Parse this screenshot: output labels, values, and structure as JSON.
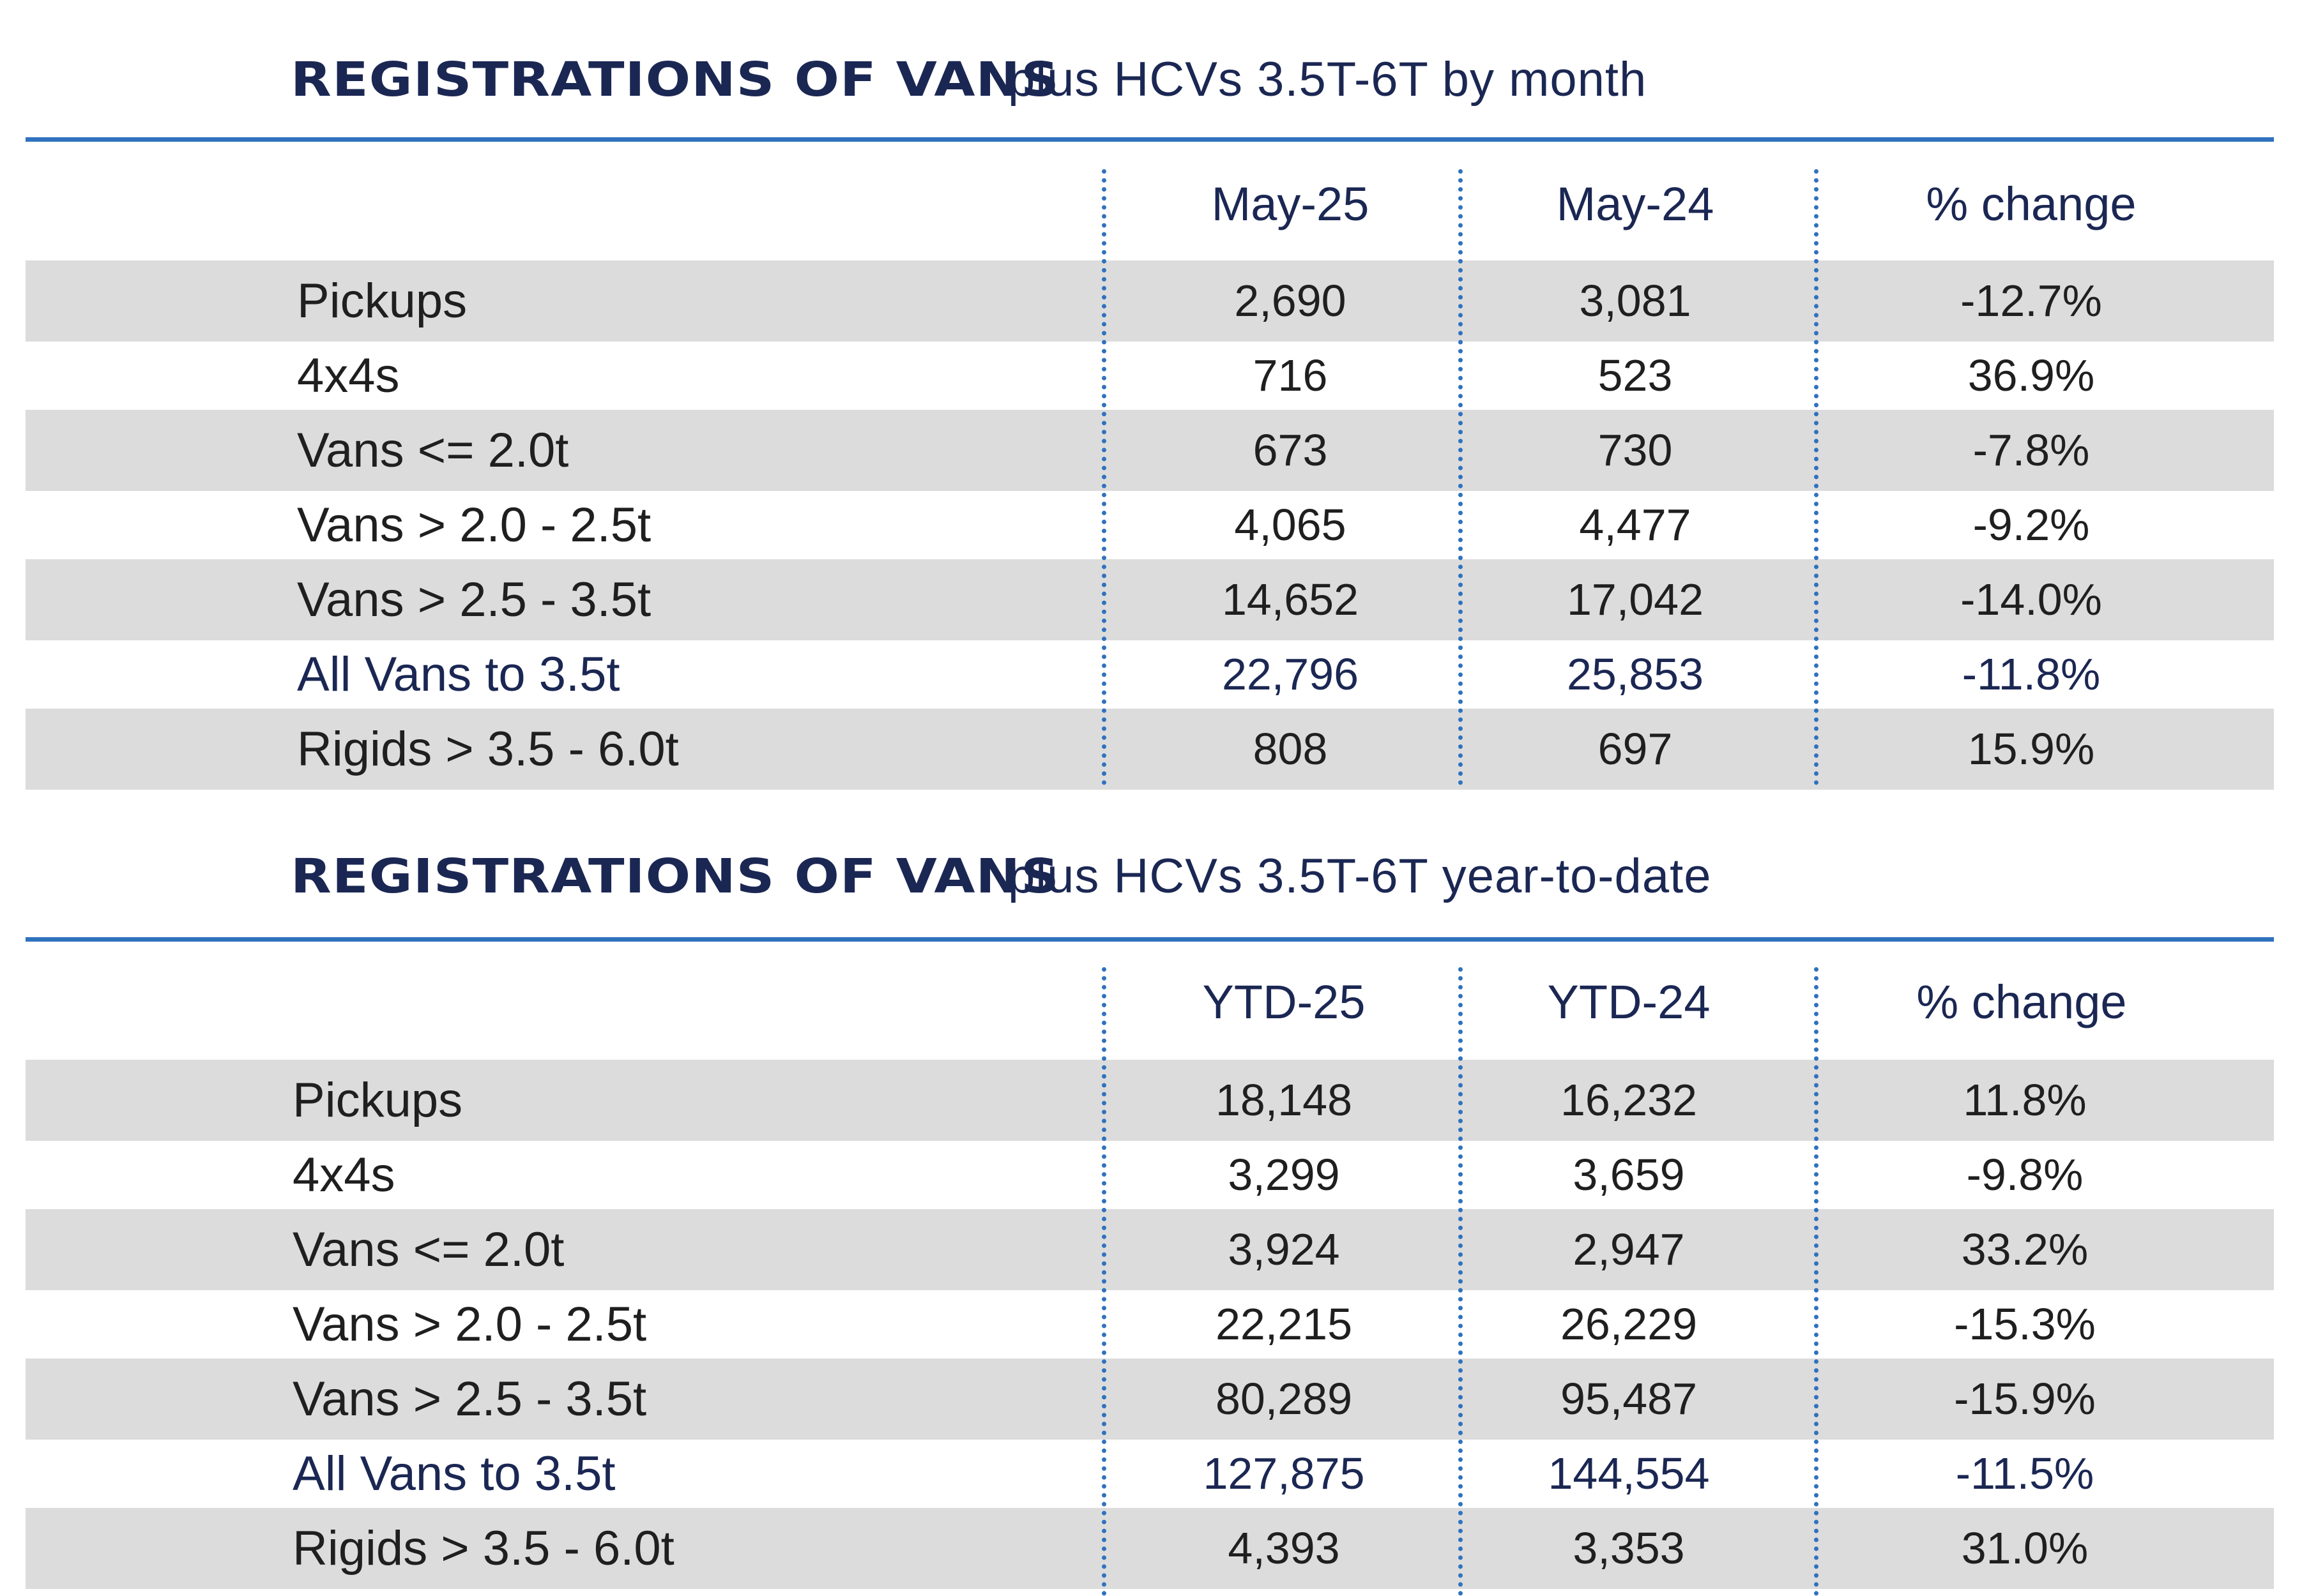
{
  "chart_data": [
    {
      "type": "table",
      "title_bold": "REGISTRATIONS OF VANS",
      "title_rest": "plus HCVs 3.5T-6T by month",
      "columns": [
        "May-25",
        "May-24",
        "% change"
      ],
      "rows": [
        {
          "label": "Pickups",
          "values": [
            "2,690",
            "3,081",
            "-12.7%"
          ]
        },
        {
          "label": "4x4s",
          "values": [
            "716",
            "523",
            "36.9%"
          ]
        },
        {
          "label": "Vans <= 2.0t",
          "values": [
            "673",
            "730",
            "-7.8%"
          ]
        },
        {
          "label": "Vans > 2.0 - 2.5t",
          "values": [
            "4,065",
            "4,477",
            "-9.2%"
          ]
        },
        {
          "label": "Vans > 2.5 - 3.5t",
          "values": [
            "14,652",
            "17,042",
            "-14.0%"
          ]
        },
        {
          "label": "All Vans to 3.5t",
          "values": [
            "22,796",
            "25,853",
            "-11.8%"
          ],
          "highlight": true
        },
        {
          "label": "Rigids > 3.5 - 6.0t",
          "values": [
            "808",
            "697",
            "15.9%"
          ]
        }
      ]
    },
    {
      "type": "table",
      "title_bold": "REGISTRATIONS OF VANS",
      "title_rest": "plus HCVs 3.5T-6T year-to-date",
      "columns": [
        "YTD-25",
        "YTD-24",
        "% change"
      ],
      "rows": [
        {
          "label": "Pickups",
          "values": [
            "18,148",
            "16,232",
            "11.8%"
          ]
        },
        {
          "label": "4x4s",
          "values": [
            "3,299",
            "3,659",
            "-9.8%"
          ]
        },
        {
          "label": "Vans <= 2.0t",
          "values": [
            "3,924",
            "2,947",
            "33.2%"
          ]
        },
        {
          "label": "Vans > 2.0 - 2.5t",
          "values": [
            "22,215",
            "26,229",
            "-15.3%"
          ]
        },
        {
          "label": "Vans > 2.5 - 3.5t",
          "values": [
            "80,289",
            "95,487",
            "-15.9%"
          ]
        },
        {
          "label": "All Vans to 3.5t",
          "values": [
            "127,875",
            "144,554",
            "-11.5%"
          ],
          "highlight": true
        },
        {
          "label": "Rigids > 3.5 - 6.0t",
          "values": [
            "4,393",
            "3,353",
            "31.0%"
          ]
        }
      ]
    }
  ],
  "colors": {
    "navy": "#1b2753",
    "accent_blue": "#2f72be",
    "row_shade": "#dcdcdc",
    "text": "#1f1f1f"
  }
}
